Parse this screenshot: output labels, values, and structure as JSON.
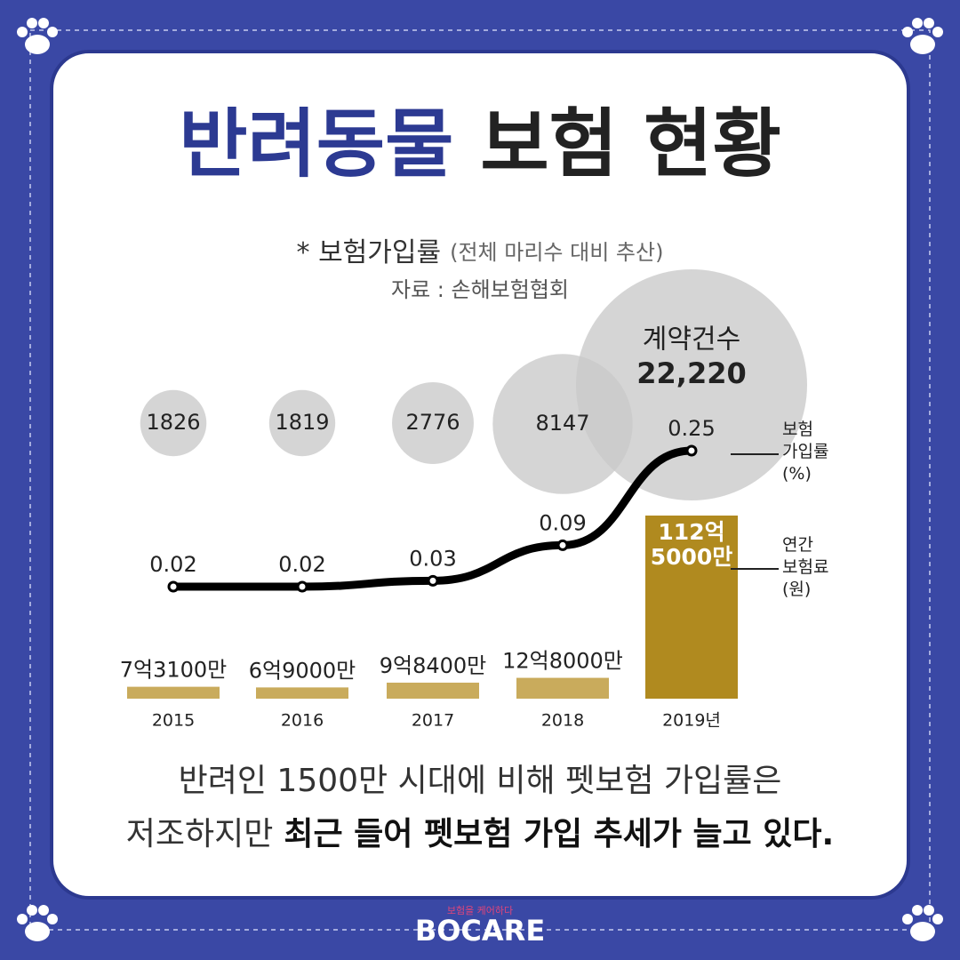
{
  "title_highlight": "반려동물",
  "title_rest": "보험 현황",
  "subtitle": "* 보험가입률",
  "subtitle_note": "(전체 마리수 대비 추산)",
  "source": "자료 : 손해보험협회",
  "chart_data": {
    "type": "combo",
    "categories": [
      "2015",
      "2016",
      "2017",
      "2018",
      "2019년"
    ],
    "series": [
      {
        "name": "계약건수",
        "type": "bubble",
        "color": "#c9c9c9",
        "values": [
          1826,
          1819,
          2776,
          8147,
          22220
        ],
        "value_labels": [
          "1826",
          "1819",
          "2776",
          "8147",
          "22,220"
        ]
      },
      {
        "name": "보험\n가입률\n(%)",
        "type": "line",
        "color": "#000000",
        "values": [
          0.02,
          0.02,
          0.03,
          0.09,
          0.25
        ]
      },
      {
        "name": "연간\n보험료\n(원)",
        "type": "bar",
        "colors": [
          "#c9ab5c",
          "#c9ab5c",
          "#c9ab5c",
          "#c9ab5c",
          "#b08a1f"
        ],
        "values": [
          731000000,
          690000000,
          984000000,
          1280000000,
          11250000000
        ],
        "value_labels": [
          "7억3100만",
          "6억9000만",
          "9억8400만",
          "12억8000만",
          "112억\n5000만"
        ]
      }
    ]
  },
  "footer": {
    "line1": "반려인 1500만 시대에 비해 펫보험 가입률은",
    "line2_plain": "저조하지만",
    "line2_bold": "최근 들어 펫보험 가입 추세가 늘고 있다."
  },
  "logo": {
    "tagline": "보험을 케어하다",
    "name": "BOCARE"
  }
}
